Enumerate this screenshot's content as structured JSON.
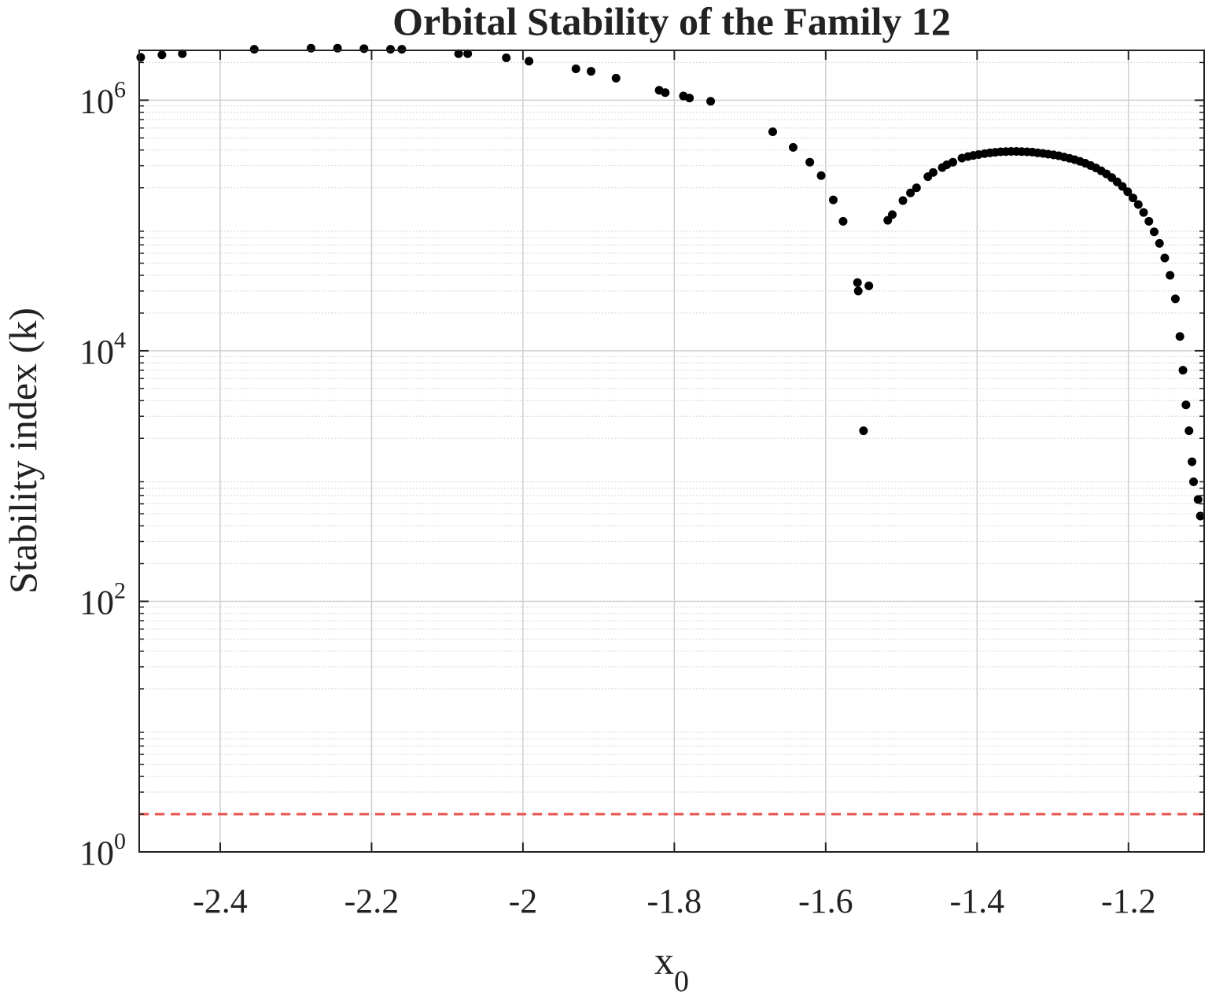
{
  "chart_data": {
    "type": "scatter",
    "title": "Orbital Stability of the Family 12",
    "xlabel_main": "x",
    "xlabel_sub": "0",
    "ylabel": "Stability index (k)",
    "xlim": [
      -2.507,
      -1.1
    ],
    "ylim": [
      1,
      2500000
    ],
    "yscale": "log",
    "grid": true,
    "minor_grid": true,
    "x_ticks": [
      -2.4,
      -2.2,
      -2.0,
      -1.8,
      -1.6,
      -1.4,
      -1.2
    ],
    "x_tick_labels": [
      "-2.4",
      "-2.2",
      "-2",
      "-1.8",
      "-1.6",
      "-1.4",
      "-1.2"
    ],
    "y_ticks": [
      {
        "value": 1,
        "base": "10",
        "exp": "0"
      },
      {
        "value": 100,
        "base": "10",
        "exp": "2"
      },
      {
        "value": 10000,
        "base": "10",
        "exp": "4"
      },
      {
        "value": 1000000,
        "base": "10",
        "exp": "6"
      }
    ],
    "reference_line": {
      "y": 2,
      "style": "dashed",
      "color": "#e8524f"
    },
    "series": [
      {
        "color": "#000000",
        "points": [
          [
            -2.505,
            2200000
          ],
          [
            -2.477,
            2300000
          ],
          [
            -2.45,
            2350000
          ],
          [
            -2.355,
            2550000
          ],
          [
            -2.28,
            2600000
          ],
          [
            -2.245,
            2600000
          ],
          [
            -2.21,
            2580000
          ],
          [
            -2.175,
            2550000
          ],
          [
            -2.16,
            2550000
          ],
          [
            -2.085,
            2350000
          ],
          [
            -2.073,
            2350000
          ],
          [
            -2.022,
            2180000
          ],
          [
            -1.992,
            2050000
          ],
          [
            -1.93,
            1780000
          ],
          [
            -1.91,
            1700000
          ],
          [
            -1.877,
            1500000
          ],
          [
            -1.82,
            1200000
          ],
          [
            -1.812,
            1150000
          ],
          [
            -1.788,
            1080000
          ],
          [
            -1.78,
            1040000
          ],
          [
            -1.752,
            980000
          ],
          [
            -1.67,
            560000
          ],
          [
            -1.643,
            420000
          ],
          [
            -1.621,
            320000
          ],
          [
            -1.606,
            250000
          ],
          [
            -1.59,
            160000
          ],
          [
            -1.577,
            108000
          ],
          [
            -1.558,
            35000
          ],
          [
            -1.557,
            30000
          ],
          [
            -1.55,
            2300
          ],
          [
            -1.543,
            33000
          ],
          [
            -1.518,
            110000
          ],
          [
            -1.512,
            122000
          ],
          [
            -1.498,
            158000
          ],
          [
            -1.488,
            182000
          ],
          [
            -1.48,
            200000
          ],
          [
            -1.465,
            245000
          ],
          [
            -1.458,
            265000
          ],
          [
            -1.446,
            290000
          ],
          [
            -1.44,
            305000
          ],
          [
            -1.432,
            320000
          ],
          [
            -1.42,
            345000
          ],
          [
            -1.412,
            355000
          ],
          [
            -1.405,
            362000
          ],
          [
            -1.398,
            368000
          ],
          [
            -1.39,
            375000
          ],
          [
            -1.383,
            380000
          ],
          [
            -1.376,
            384000
          ],
          [
            -1.369,
            387000
          ],
          [
            -1.362,
            389000
          ],
          [
            -1.355,
            390000
          ],
          [
            -1.348,
            390000
          ],
          [
            -1.341,
            389000
          ],
          [
            -1.334,
            387000
          ],
          [
            -1.327,
            385000
          ],
          [
            -1.32,
            380000
          ],
          [
            -1.313,
            376000
          ],
          [
            -1.306,
            371000
          ],
          [
            -1.299,
            366000
          ],
          [
            -1.292,
            360000
          ],
          [
            -1.285,
            352000
          ],
          [
            -1.278,
            344000
          ],
          [
            -1.271,
            335000
          ],
          [
            -1.264,
            325000
          ],
          [
            -1.257,
            314000
          ],
          [
            -1.25,
            301000
          ],
          [
            -1.243,
            288000
          ],
          [
            -1.236,
            273000
          ],
          [
            -1.229,
            258000
          ],
          [
            -1.222,
            241000
          ],
          [
            -1.215,
            223000
          ],
          [
            -1.208,
            205000
          ],
          [
            -1.201,
            186000
          ],
          [
            -1.194,
            166000
          ],
          [
            -1.187,
            147000
          ],
          [
            -1.18,
            127000
          ],
          [
            -1.173,
            108000
          ],
          [
            -1.166,
            89000
          ],
          [
            -1.159,
            72000
          ],
          [
            -1.152,
            55000
          ],
          [
            -1.145,
            40000
          ],
          [
            -1.138,
            26000
          ],
          [
            -1.132,
            13000
          ],
          [
            -1.128,
            7000
          ],
          [
            -1.124,
            3700
          ],
          [
            -1.12,
            2300
          ],
          [
            -1.116,
            1300
          ],
          [
            -1.114,
            900
          ],
          [
            -1.108,
            650
          ],
          [
            -1.105,
            480
          ]
        ]
      }
    ]
  }
}
